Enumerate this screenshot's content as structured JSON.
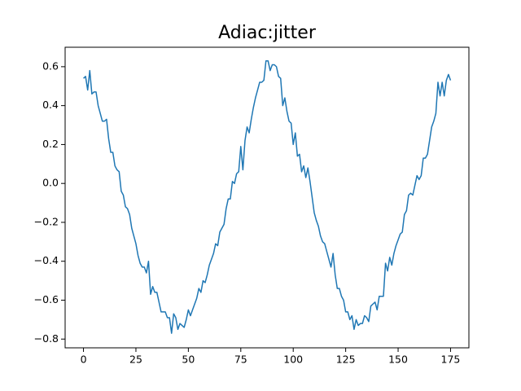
{
  "chart_data": {
    "type": "line",
    "title": "Adiac:jitter",
    "x": [
      0,
      1,
      2,
      3,
      4,
      5,
      6,
      7,
      8,
      9,
      10,
      11,
      12,
      13,
      14,
      15,
      16,
      17,
      18,
      19,
      20,
      21,
      22,
      23,
      24,
      25,
      26,
      27,
      28,
      29,
      30,
      31,
      32,
      33,
      34,
      35,
      36,
      37,
      38,
      39,
      40,
      41,
      42,
      43,
      44,
      45,
      46,
      47,
      48,
      49,
      50,
      51,
      52,
      53,
      54,
      55,
      56,
      57,
      58,
      59,
      60,
      61,
      62,
      63,
      64,
      65,
      66,
      67,
      68,
      69,
      70,
      71,
      72,
      73,
      74,
      75,
      76,
      77,
      78,
      79,
      80,
      81,
      82,
      83,
      84,
      85,
      86,
      87,
      88,
      89,
      90,
      91,
      92,
      93,
      94,
      95,
      96,
      97,
      98,
      99,
      100,
      101,
      102,
      103,
      104,
      105,
      106,
      107,
      108,
      109,
      110,
      111,
      112,
      113,
      114,
      115,
      116,
      117,
      118,
      119,
      120,
      121,
      122,
      123,
      124,
      125,
      126,
      127,
      128,
      129,
      130,
      131,
      132,
      133,
      134,
      135,
      136,
      137,
      138,
      139,
      140,
      141,
      142,
      143,
      144,
      145,
      146,
      147,
      148,
      149,
      150,
      151,
      152,
      153,
      154,
      155,
      156,
      157,
      158,
      159,
      160,
      161,
      162,
      163,
      164,
      165,
      166,
      167,
      168,
      169,
      170,
      171,
      172,
      173,
      174,
      175
    ],
    "series": [
      {
        "color": "#1f77b4",
        "values": [
          0.54,
          0.55,
          0.48,
          0.58,
          0.46,
          0.47,
          0.47,
          0.4,
          0.36,
          0.32,
          0.32,
          0.33,
          0.23,
          0.16,
          0.16,
          0.09,
          0.07,
          0.06,
          -0.04,
          -0.06,
          -0.12,
          -0.13,
          -0.16,
          -0.23,
          -0.27,
          -0.31,
          -0.37,
          -0.41,
          -0.43,
          -0.43,
          -0.46,
          -0.4,
          -0.57,
          -0.53,
          -0.56,
          -0.56,
          -0.61,
          -0.66,
          -0.66,
          -0.66,
          -0.69,
          -0.69,
          -0.77,
          -0.67,
          -0.69,
          -0.75,
          -0.72,
          -0.73,
          -0.74,
          -0.7,
          -0.65,
          -0.68,
          -0.65,
          -0.62,
          -0.59,
          -0.54,
          -0.56,
          -0.5,
          -0.51,
          -0.47,
          -0.42,
          -0.39,
          -0.36,
          -0.31,
          -0.32,
          -0.25,
          -0.23,
          -0.21,
          -0.13,
          -0.08,
          -0.08,
          0.01,
          0.0,
          0.05,
          0.06,
          0.19,
          0.07,
          0.22,
          0.29,
          0.26,
          0.33,
          0.39,
          0.44,
          0.48,
          0.52,
          0.52,
          0.53,
          0.63,
          0.63,
          0.58,
          0.61,
          0.61,
          0.6,
          0.55,
          0.54,
          0.4,
          0.44,
          0.37,
          0.32,
          0.31,
          0.2,
          0.26,
          0.14,
          0.15,
          0.06,
          0.09,
          0.03,
          0.08,
          0.01,
          -0.07,
          -0.15,
          -0.19,
          -0.22,
          -0.27,
          -0.3,
          -0.31,
          -0.35,
          -0.39,
          -0.43,
          -0.36,
          -0.47,
          -0.54,
          -0.54,
          -0.58,
          -0.6,
          -0.66,
          -0.66,
          -0.7,
          -0.68,
          -0.75,
          -0.7,
          -0.73,
          -0.72,
          -0.72,
          -0.68,
          -0.69,
          -0.71,
          -0.63,
          -0.62,
          -0.61,
          -0.65,
          -0.58,
          -0.58,
          -0.58,
          -0.41,
          -0.45,
          -0.38,
          -0.42,
          -0.36,
          -0.32,
          -0.29,
          -0.26,
          -0.25,
          -0.16,
          -0.14,
          -0.06,
          -0.05,
          -0.06,
          -0.01,
          0.04,
          0.02,
          0.04,
          0.13,
          0.13,
          0.15,
          0.22,
          0.29,
          0.32,
          0.36,
          0.52,
          0.45,
          0.52,
          0.45,
          0.53,
          0.56,
          0.53
        ]
      }
    ],
    "xlim": [
      -8.75,
      183.75
    ],
    "xticks": [
      0,
      25,
      50,
      75,
      100,
      125,
      150,
      175
    ],
    "ylim": [
      -0.845,
      0.7
    ],
    "yticks": [
      {
        "value": -0.8,
        "label": "−0.8"
      },
      {
        "value": -0.6,
        "label": "−0.6"
      },
      {
        "value": -0.4,
        "label": "−0.4"
      },
      {
        "value": -0.2,
        "label": "−0.2"
      },
      {
        "value": 0,
        "label": "0.0"
      },
      0.2,
      0.4,
      0.6
    ]
  }
}
